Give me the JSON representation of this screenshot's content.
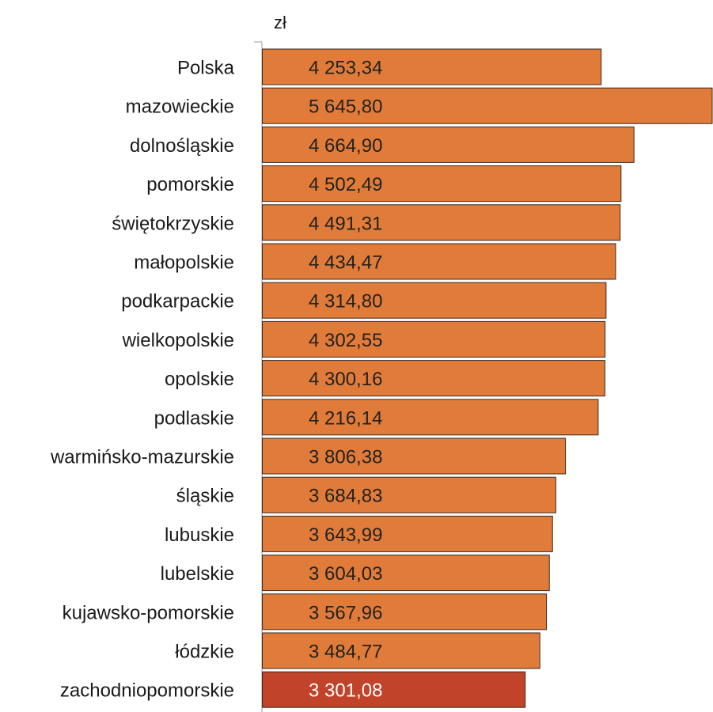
{
  "chart_data": {
    "type": "bar",
    "orientation": "horizontal",
    "unit": "zł",
    "xlim": [
      0,
      5645.8
    ],
    "grid": false,
    "categories": [
      "Polska",
      "mazowieckie",
      "dolnośląskie",
      "pomorskie",
      "świętokrzyskie",
      "małopolskie",
      "podkarpackie",
      "wielkopolskie",
      "opolskie",
      "podlaskie",
      "warmińsko-mazurskie",
      "śląskie",
      "lubuskie",
      "lubelskie",
      "kujawsko-pomorskie",
      "łódzkie",
      "zachodniopomorskie"
    ],
    "values": [
      4253.34,
      5645.8,
      4664.9,
      4502.49,
      4491.31,
      4434.47,
      4314.8,
      4302.55,
      4300.16,
      4216.14,
      3806.38,
      3684.83,
      3643.99,
      3604.03,
      3567.96,
      3484.77,
      3301.08
    ],
    "value_labels": [
      "4 253,34",
      "5 645,80",
      "4 664,90",
      "4 502,49",
      "4 491,31",
      "4 434,47",
      "4 314,80",
      "4 302,55",
      "4 300,16",
      "4 216,14",
      "3 806,38",
      "3 684,83",
      "3 643,99",
      "3 604,03",
      "3 567,96",
      "3 484,77",
      "3 301,08"
    ],
    "colors": {
      "bar": "#E07B39",
      "bar_highlight": "#C0432A",
      "bar_border": "#3a2a20",
      "axis": "#9a9a9a",
      "label_on_bar": "#222222",
      "label_on_highlight": "#ffffff"
    },
    "highlight_index": 16
  }
}
